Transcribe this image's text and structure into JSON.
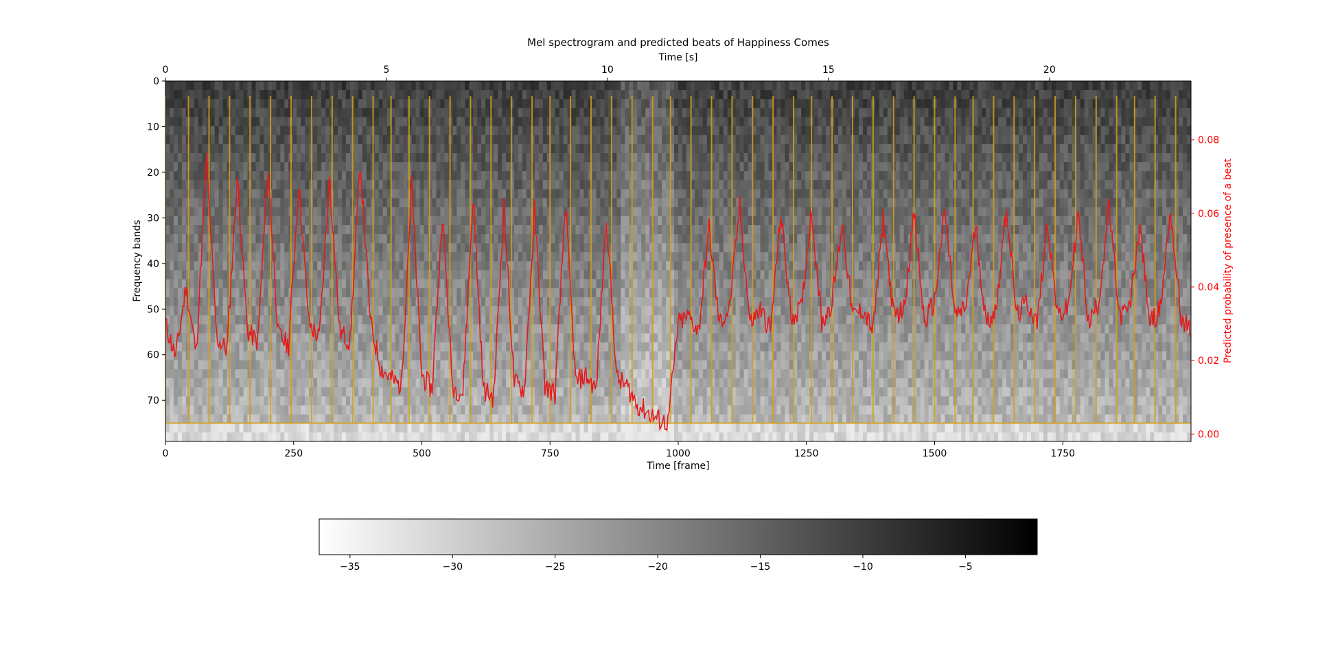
{
  "chart_data": [
    {
      "type": "heatmap",
      "title": "Mel spectrogram and predicted beats of Happiness Comes",
      "xlabel": "Time [frame]",
      "ylabel": "Frequency bands",
      "xlim": [
        0,
        2000
      ],
      "ylim": [
        79,
        0
      ],
      "x_ticks": [
        0,
        250,
        500,
        750,
        1000,
        1250,
        1500,
        1750
      ],
      "y_ticks": [
        0,
        10,
        20,
        30,
        40,
        50,
        60,
        70
      ],
      "top_axis": {
        "label": "Time [s]",
        "ticks": [
          0,
          5,
          10,
          15,
          20
        ],
        "frames_per_tick": 431
      },
      "right_axis": {
        "label": "Predicted probability of presence of a beat",
        "ticks": [
          0.0,
          0.02,
          0.04,
          0.06,
          0.08
        ],
        "tick_labels": [
          "0.00",
          "0.02",
          "0.04",
          "0.06",
          "0.08"
        ],
        "ylim": [
          -0.002,
          0.096
        ],
        "color": "#ff0000"
      },
      "colormap": "gray_r",
      "colorbar": {
        "range": [
          -36.5,
          -1.5
        ],
        "ticks": [
          -35,
          -30,
          -25,
          -20,
          -15,
          -10,
          -5
        ],
        "tick_labels": [
          "−35",
          "−30",
          "−25",
          "−20",
          "−15",
          "−10",
          "−5"
        ]
      },
      "beat_frames": [
        0,
        45,
        85,
        125,
        165,
        205,
        245,
        285,
        325,
        365,
        405,
        440,
        475,
        515,
        555,
        595,
        635,
        675,
        715,
        750,
        790,
        830,
        870,
        910,
        950,
        985,
        1025,
        1065,
        1105,
        1145,
        1185,
        1225,
        1260,
        1300,
        1340,
        1380,
        1420,
        1460,
        1500,
        1540,
        1575,
        1615,
        1655,
        1695,
        1735,
        1775,
        1815,
        1855,
        1890,
        1930,
        1970
      ],
      "beat_color": "#d4a017",
      "probability_series": {
        "name": "",
        "color": "#e31a1c",
        "x": [
          0,
          20,
          40,
          60,
          80,
          100,
          120,
          140,
          160,
          180,
          200,
          220,
          240,
          260,
          280,
          300,
          320,
          340,
          360,
          380,
          400,
          420,
          440,
          460,
          480,
          500,
          520,
          540,
          560,
          580,
          600,
          620,
          640,
          660,
          680,
          700,
          720,
          740,
          760,
          780,
          800,
          820,
          840,
          860,
          880,
          900,
          920,
          940,
          960,
          980,
          1000,
          1020,
          1040,
          1060,
          1080,
          1100,
          1120,
          1140,
          1160,
          1180,
          1200,
          1220,
          1240,
          1260,
          1280,
          1300,
          1320,
          1340,
          1360,
          1380,
          1400,
          1420,
          1440,
          1460,
          1480,
          1500,
          1520,
          1540,
          1560,
          1580,
          1600,
          1620,
          1640,
          1660,
          1680,
          1700,
          1720,
          1740,
          1760,
          1780,
          1800,
          1820,
          1840,
          1860,
          1880,
          1900,
          1920,
          1940,
          1960,
          1980,
          1998
        ],
        "y": [
          0.03,
          0.021,
          0.04,
          0.022,
          0.075,
          0.026,
          0.023,
          0.07,
          0.028,
          0.025,
          0.072,
          0.027,
          0.024,
          0.068,
          0.03,
          0.026,
          0.07,
          0.028,
          0.025,
          0.074,
          0.03,
          0.018,
          0.015,
          0.013,
          0.068,
          0.016,
          0.012,
          0.06,
          0.013,
          0.011,
          0.065,
          0.012,
          0.01,
          0.062,
          0.014,
          0.012,
          0.061,
          0.013,
          0.011,
          0.063,
          0.014,
          0.016,
          0.012,
          0.06,
          0.015,
          0.013,
          0.008,
          0.006,
          0.004,
          0.003,
          0.03,
          0.032,
          0.028,
          0.056,
          0.03,
          0.034,
          0.062,
          0.03,
          0.034,
          0.028,
          0.06,
          0.032,
          0.034,
          0.061,
          0.03,
          0.036,
          0.058,
          0.032,
          0.034,
          0.028,
          0.059,
          0.032,
          0.034,
          0.06,
          0.03,
          0.036,
          0.061,
          0.032,
          0.034,
          0.057,
          0.03,
          0.034,
          0.062,
          0.032,
          0.036,
          0.03,
          0.058,
          0.032,
          0.034,
          0.06,
          0.03,
          0.036,
          0.062,
          0.032,
          0.034,
          0.057,
          0.03,
          0.034,
          0.061,
          0.032,
          0.028
        ]
      }
    }
  ]
}
